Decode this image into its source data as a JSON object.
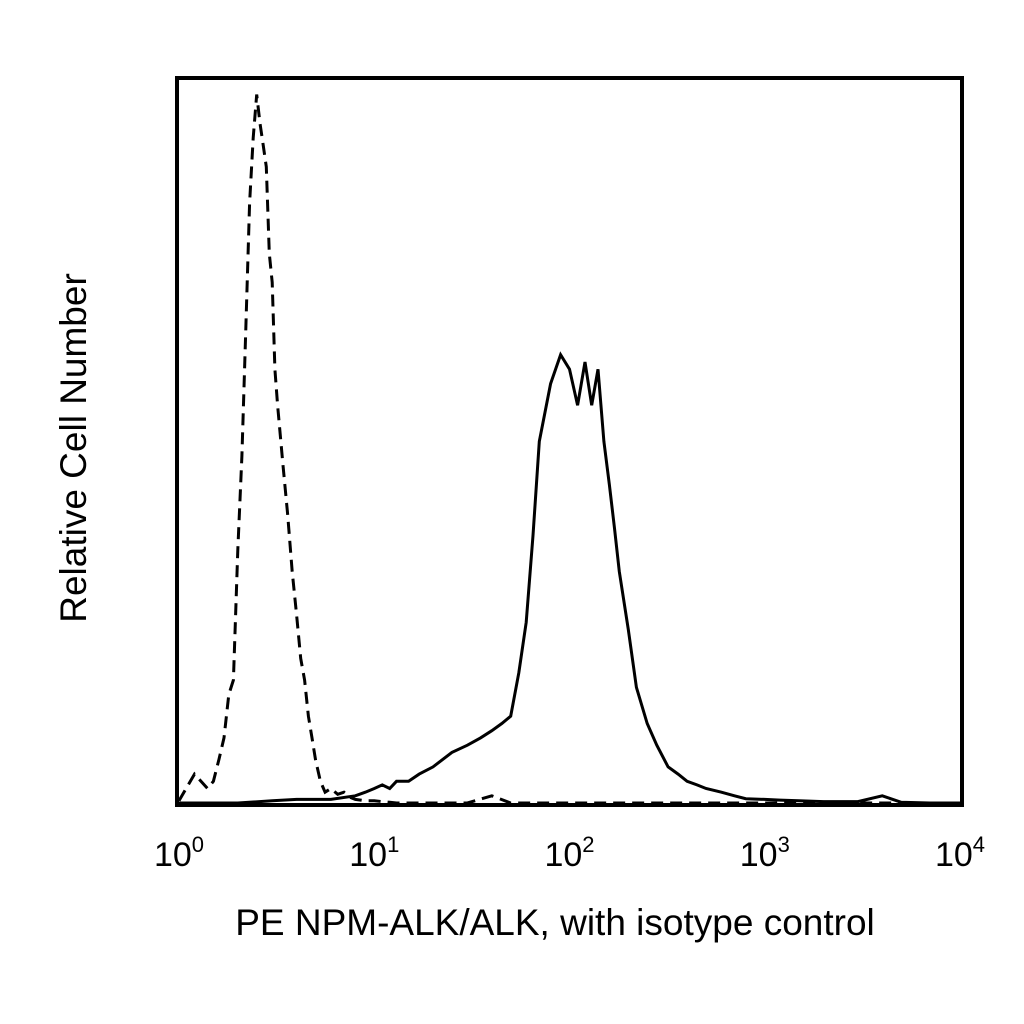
{
  "chart_data": {
    "type": "line",
    "title": "",
    "xlabel": "PE NPM-ALK/ALK, with isotype control",
    "ylabel": "Relative Cell Number",
    "x_scale": "log",
    "xlim": [
      1,
      10000
    ],
    "ylim": [
      0,
      100
    ],
    "grid": false,
    "legend": "none",
    "x_ticks": [
      {
        "base": "10",
        "exp": "0",
        "value": 1
      },
      {
        "base": "10",
        "exp": "1",
        "value": 10
      },
      {
        "base": "10",
        "exp": "2",
        "value": 100
      },
      {
        "base": "10",
        "exp": "3",
        "value": 1000
      },
      {
        "base": "10",
        "exp": "4",
        "value": 10000
      }
    ],
    "series": [
      {
        "style": "dashed",
        "color": "#000000",
        "x": [
          1.0,
          1.2,
          1.4,
          1.5,
          1.6,
          1.7,
          1.8,
          1.9,
          2.0,
          2.1,
          2.2,
          2.3,
          2.4,
          2.5,
          2.6,
          2.7,
          2.8,
          2.9,
          3.0,
          3.1,
          3.2,
          3.4,
          3.6,
          3.8,
          4.0,
          4.2,
          4.4,
          4.6,
          4.8,
          5.0,
          5.3,
          5.6,
          6.0,
          6.5,
          7.0,
          7.5,
          8.0,
          9.0,
          10,
          11,
          12,
          13,
          15,
          20,
          30,
          40,
          50,
          60,
          100,
          1000,
          10000
        ],
        "y": [
          0.3,
          4,
          2,
          3,
          6,
          9,
          15,
          17,
          35,
          48,
          66,
          83,
          92,
          98,
          94,
          91,
          88,
          76,
          72,
          60,
          55,
          47,
          40,
          32,
          26,
          20,
          17,
          12,
          9,
          6,
          3,
          1.5,
          2,
          1.2,
          1.5,
          0.8,
          0.5,
          0.3,
          0.3,
          0.2,
          0.1,
          0,
          0,
          0,
          0,
          1,
          0,
          0,
          0,
          0,
          0
        ]
      },
      {
        "style": "solid",
        "color": "#000000",
        "x": [
          1.0,
          2.0,
          3.0,
          4.0,
          6.0,
          8.0,
          9.0,
          10,
          11,
          12,
          13,
          15,
          17,
          20,
          25,
          30,
          35,
          40,
          45,
          50,
          55,
          60,
          65,
          70,
          80,
          90,
          100,
          110,
          120,
          130,
          140,
          150,
          160,
          170,
          180,
          200,
          220,
          250,
          280,
          320,
          360,
          400,
          450,
          500,
          600,
          700,
          800,
          1000,
          1200,
          1500,
          2000,
          3000,
          4000,
          5000,
          7000,
          10000
        ],
        "y": [
          0,
          0,
          0.3,
          0.5,
          0.5,
          1,
          1.5,
          2,
          2.5,
          2,
          3,
          3,
          4,
          5,
          7,
          8,
          9,
          10,
          11,
          12,
          18,
          25,
          37,
          50,
          58,
          62,
          60,
          55,
          61,
          55,
          60,
          50,
          44,
          38,
          32,
          24,
          16,
          11,
          8,
          5,
          4,
          3,
          2.5,
          2,
          1.5,
          1,
          0.6,
          0.5,
          0.4,
          0.3,
          0.2,
          0.2,
          1,
          0.1,
          0,
          0
        ]
      }
    ]
  }
}
